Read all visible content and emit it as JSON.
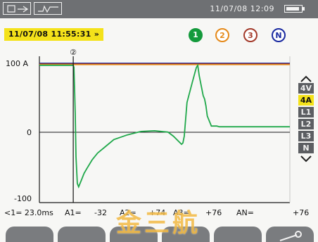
{
  "status_bar": {
    "datetime": "11/07/08  12:09",
    "icons": [
      "screen-mode-icon",
      "waveform-capture-icon",
      "battery-icon"
    ]
  },
  "capture": {
    "timestamp": "11/07/08  11:55:31 »"
  },
  "channels": [
    {
      "label": "1",
      "color": "#149a3c",
      "selected": true
    },
    {
      "label": "2",
      "color": "#e58a1a",
      "selected": false
    },
    {
      "label": "3",
      "color": "#a33a2a",
      "selected": false
    },
    {
      "label": "N",
      "color": "#1a2aa0",
      "selected": false
    }
  ],
  "side_menu": {
    "items": [
      "4V",
      "4A",
      "L1",
      "L2",
      "L3",
      "N"
    ],
    "active": "4A"
  },
  "cursor_label": "②",
  "chart_data": {
    "type": "line",
    "y_tick_labels": [
      "100 A",
      "0",
      "-100"
    ],
    "ylim": [
      -100,
      100
    ],
    "xlim": [
      -25,
      160
    ],
    "series": [
      {
        "color": "#1fa84a",
        "x": [
          -25,
          0,
          0.5,
          1,
          1.5,
          2,
          3,
          4,
          6,
          8,
          10,
          14,
          18,
          24,
          30,
          40,
          50,
          60,
          70,
          74,
          78,
          80,
          81,
          82,
          84,
          86,
          88,
          90,
          91,
          92,
          93,
          94,
          95,
          96,
          97,
          98,
          99,
          100,
          101,
          102,
          104,
          106,
          108,
          110,
          120,
          140,
          160
        ],
        "y": [
          95,
          95,
          92,
          60,
          20,
          -40,
          -80,
          -85,
          -75,
          -65,
          -58,
          -45,
          -35,
          -25,
          -15,
          -8,
          -3,
          -2,
          -4,
          -10,
          -18,
          -22,
          -20,
          -10,
          40,
          55,
          70,
          85,
          92,
          95,
          80,
          70,
          60,
          50,
          45,
          35,
          20,
          15,
          10,
          5,
          5,
          5,
          4,
          4,
          4,
          4,
          4
        ]
      },
      {
        "color": "#e58a1a",
        "x": [
          -25,
          160
        ],
        "y": [
          96,
          96
        ]
      },
      {
        "color": "#a33a2a",
        "x": [
          -25,
          160
        ],
        "y": [
          97,
          97
        ]
      },
      {
        "color": "#1a2aa0",
        "x": [
          -25,
          160
        ],
        "y": [
          98,
          98
        ]
      }
    ],
    "cursor_x": 0,
    "grid": false
  },
  "readout": {
    "time": "<1= 23.0ms",
    "a1_label": "A1=",
    "a1_value": "-32",
    "a2_label": "A2=",
    "a2_value": "+74",
    "a3_label": "A3=",
    "a3_value": "+76",
    "an_label": "AN=",
    "an_value": "+76"
  },
  "softkeys": [
    {
      "icon": "blank-softkey"
    },
    {
      "icon": "blank-softkey"
    },
    {
      "icon": "blank-softkey"
    },
    {
      "icon": "blank-softkey"
    },
    {
      "icon": "blank-softkey"
    },
    {
      "icon": "zoom-cursor-icon"
    }
  ],
  "watermark": "金三航"
}
